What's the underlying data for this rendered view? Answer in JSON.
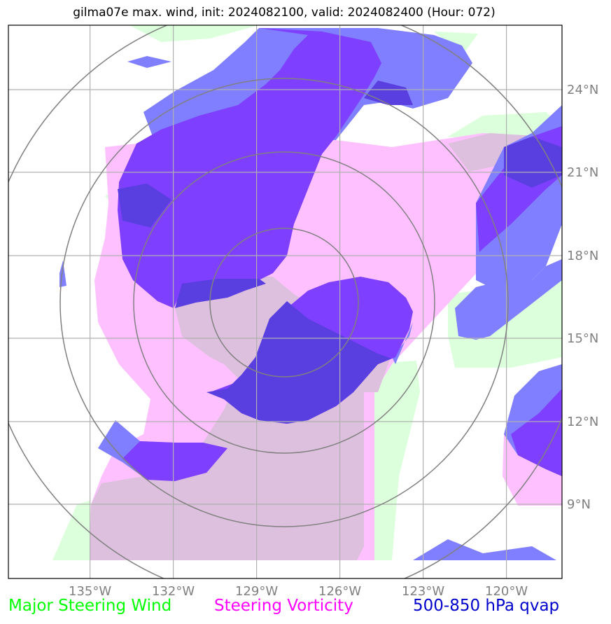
{
  "title": "gilma07e max. wind, init: 2024082100, valid: 2024082400 (Hour: 072)",
  "lat_labels": [
    "24°N",
    "21°N",
    "18°N",
    "15°N",
    "12°N",
    "9°N"
  ],
  "lon_labels": [
    "135°W",
    "132°W",
    "129°W",
    "126°W",
    "123°W",
    "120°W"
  ],
  "legend": [
    {
      "label": "Major Steering Wind",
      "color": "#00ff00"
    },
    {
      "label": "Steering Vorticity",
      "color": "#ff00ff"
    },
    {
      "label": "500-850 hPa qvap",
      "color": "#0000cc"
    }
  ],
  "colors": {
    "steering_wind": "#dcffdc",
    "vorticity": "#ffc0ff",
    "qvap_light": "#7f7fff",
    "qvap_dark": "#7f3fff",
    "overlap": "#ddc0dd"
  }
}
